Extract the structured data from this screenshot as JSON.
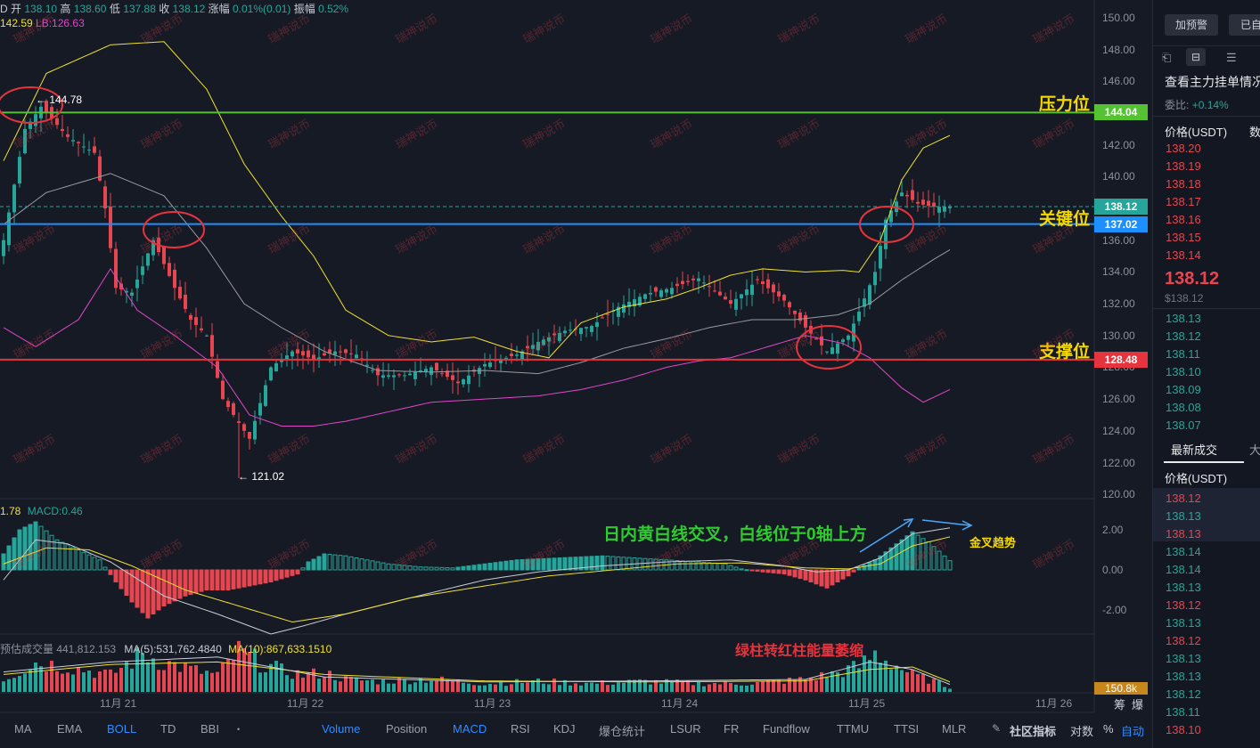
{
  "ohlc_bar": {
    "prefix": "D",
    "open_label": "开",
    "open": "138.10",
    "high_label": "高",
    "high": "138.60",
    "low_label": "低",
    "low": "137.88",
    "close_label": "收",
    "close": "138.12",
    "change_label": "涨幅",
    "change": "0.01%(0.01)",
    "amp_label": "振幅",
    "amp": "0.52%"
  },
  "boll": {
    "ub": "142.59",
    "lb_label": "LB:126.63"
  },
  "price_axis": [
    "150.00",
    "148.00",
    "146.00",
    "144.00",
    "142.00",
    "140.00",
    "138.00",
    "136.00",
    "134.00",
    "132.00",
    "130.00",
    "128.00",
    "126.00",
    "124.00",
    "122.00",
    "120.00"
  ],
  "price_tags": {
    "resistance": {
      "value": "144.04",
      "color": "#55c234"
    },
    "current": {
      "value": "138.12",
      "color": "#26a69a"
    },
    "key": {
      "value": "137.02",
      "color": "#1e8fff"
    },
    "support": {
      "value": "128.48",
      "color": "#e5343d"
    }
  },
  "annotations": {
    "resistance": "压力位",
    "key": "关键位",
    "support": "支撑位",
    "high_mark": "← 144.78",
    "low_mark": "← 121.02",
    "macd_note": "日内黄白线交叉，白线位于0轴上方",
    "golden_cross": "金叉趋势",
    "volume_note": "绿柱转红柱能量萎缩"
  },
  "macd": {
    "label_left": "1.78",
    "label_macd": "MACD:0.46",
    "axis": [
      "2.00",
      "0.00",
      "-2.00"
    ]
  },
  "volume": {
    "label_pred": "预估成交量 441,812.153",
    "label_ma5": "MA(5):531,762.4840",
    "label_ma10": "MA(10):867,633.1510",
    "tag": "150.8k"
  },
  "x_axis": [
    "11月 21",
    "11月 22",
    "11月 23",
    "11月 24",
    "11月 25",
    "11月 26"
  ],
  "bottom_right": [
    "筹",
    "爆"
  ],
  "toolbar": {
    "left": [
      "MA",
      "EMA",
      "BOLL",
      "TD",
      "BBI"
    ],
    "right": [
      "Volume",
      "Position",
      "MACD",
      "RSI",
      "KDJ",
      "爆仓统计",
      "LSUR",
      "FR",
      "Fundflow",
      "TTMU",
      "TTSI",
      "MLR"
    ],
    "community": "社区指标",
    "log": "对数",
    "pct": "%",
    "auto": "自动"
  },
  "watermark": "瑞神说币",
  "sidebar": {
    "btn_alert": "加预警",
    "btn_done": "已自",
    "heading": "查看主力挂单情况",
    "ratio_label": "委比:",
    "ratio_value": "+0.14%",
    "price_header": "价格(USDT)",
    "price_header_extra": "数",
    "asks": [
      "138.20",
      "138.19",
      "138.18",
      "138.17",
      "138.16",
      "138.15",
      "138.14"
    ],
    "last": "138.12",
    "last_sub": "$138.12",
    "bids": [
      "138.13",
      "138.12",
      "138.11",
      "138.10",
      "138.09",
      "138.08",
      "138.07"
    ],
    "trades_tab": "最新成交",
    "trades_tab2": "大",
    "trades_header": "价格(USDT)",
    "trades": [
      {
        "p": "138.12",
        "c": "red"
      },
      {
        "p": "138.13",
        "c": "grn"
      },
      {
        "p": "138.13",
        "c": "red"
      },
      {
        "p": "138.14",
        "c": "grn"
      },
      {
        "p": "138.14",
        "c": "grn"
      },
      {
        "p": "138.13",
        "c": "grn"
      },
      {
        "p": "138.12",
        "c": "red"
      },
      {
        "p": "138.13",
        "c": "grn"
      },
      {
        "p": "138.12",
        "c": "red"
      },
      {
        "p": "138.13",
        "c": "grn"
      },
      {
        "p": "138.13",
        "c": "grn"
      },
      {
        "p": "138.12",
        "c": "grn"
      },
      {
        "p": "138.11",
        "c": "grn"
      },
      {
        "p": "138.10",
        "c": "red"
      }
    ]
  }
}
